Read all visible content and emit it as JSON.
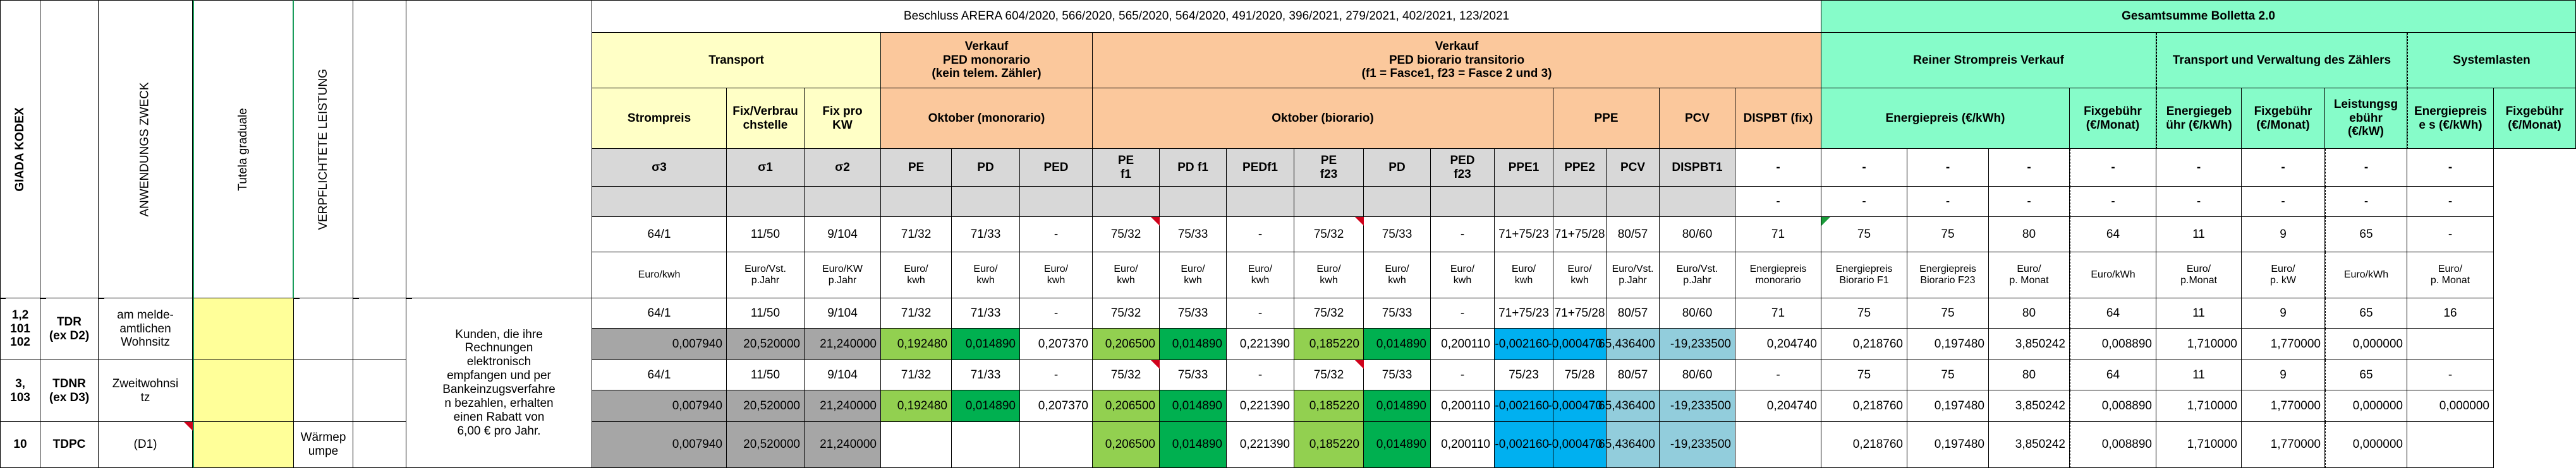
{
  "sheet": {
    "left_headers": {
      "giada_kodex": "GIADA KODEX",
      "anwendungs_zweck": "ANWENDUNGS\nZWECK",
      "tutela": "Tutela graduale",
      "verpflichtete": "VERPFLICHTETE LEISTUNG"
    },
    "group_titles": {
      "arera": "Beschluss ARERA 604/2020, 566/2020, 565/2020, 564/2020, 491/2020, 396/2021, 279/2021, 402/2021, 123/2021",
      "bolletta": "Gesamtsumme Bolletta 2.0",
      "transport": "Transport",
      "verkauf_mono": "Verkauf\nPED monorario\n(kein telem. Zähler)",
      "verkauf_bio": "Verkauf\nPED biorario transitorio\n(f1 = Fasce1, f23 = Fasce 2 und 3)",
      "reiner": "Reiner Strompreis Verkauf",
      "trans_verw": "Transport und Verwaltung des Zählers",
      "system": "Systemlasten"
    },
    "sub_headers": {
      "strompreis": "Strompreis",
      "fixverbrauch": "Fix/Verbrau\nchstelle",
      "fixkw": "Fix pro\nKW",
      "oktober_mono": "Oktober (monorario)",
      "oktober_bio": "Oktober (biorario)",
      "ppe": "PPE",
      "pcv": "PCV",
      "dispbt_fix": "DISPBT (fix)",
      "energiepreis_kwh": "Energiepreis (€/kWh)",
      "fixgebuehr_monat": "Fixgebühr\n(€/Monat)",
      "energiegebuehr_kwh": "Energiegeb\nühr (€/kWh)",
      "fixgebuehr_monat2": "Fixgebühr\n(€/Monat)",
      "leistungsgebuehr": "Leistungsg\nebühr\n(€/kW)",
      "energiepreis_s": "Energiepreis\ne s (€/kWh)",
      "fixgebuehr_monat3": "Fixgebühr\n(€/Monat)"
    },
    "codes": [
      "σ3",
      "σ1",
      "σ2",
      "PE",
      "PD",
      "PED",
      "PE\nf1",
      "PD f1",
      "PEDf1",
      "PE\nf23",
      "PD",
      "PED\nf23",
      "PPE1",
      "PPE2",
      "PCV",
      "DISPBT1",
      "-",
      "-",
      "-",
      "-",
      "-",
      "-",
      "-",
      "-",
      "-"
    ],
    "empty_row": [
      "-",
      "-",
      "-",
      "-",
      "-",
      "-",
      "-",
      "-",
      "-"
    ],
    "refs": [
      "64/1",
      "11/50",
      "9/104",
      "71/32",
      "71/33",
      "-",
      "75/32",
      "75/33",
      "-",
      "75/32",
      "75/33",
      "-",
      "71+75/23",
      "71+75/28",
      "80/57",
      "80/60",
      "71",
      "75",
      "75",
      "80",
      "64",
      "11",
      "9",
      "65",
      "-"
    ],
    "units": [
      "Euro/kwh",
      "Euro/Vst.\np.Jahr",
      "Euro/KW\np.Jahr",
      "Euro/\nkwh",
      "Euro/\nkwh",
      "Euro/\nkwh",
      "Euro/\nkwh",
      "Euro/\nkwh",
      "Euro/\nkwh",
      "Euro/\nkwh",
      "Euro/\nkwh",
      "Euro/\nkwh",
      "Euro/\nkwh",
      "Euro/\nkwh",
      "Euro/Vst.\np.Jahr",
      "Euro/Vst.\np.Jahr",
      "Energiepreis\nmonorario",
      "Energiepreis\nBiorario F1",
      "Energiepreis\nBiorario F23",
      "Euro/\np. Monat",
      "Euro/kWh",
      "Euro/\np.Monat",
      "Euro/\np. kW",
      "Euro/kWh",
      "Euro/\np. Monat"
    ],
    "description": "Kunden, die ihre\nRechnungen\nelektronisch\nempfangen und per\nBankeinzugsverfahre\nn bezahlen, erhalten\neinen Rabatt von\n6,00 € pro Jahr.",
    "tariffs": [
      {
        "code": "1,2\n101\n102",
        "name": "TDR\n(ex D2)",
        "zweck": "am melde-\namtlichen\nWohnsitz",
        "leistung": "",
        "refs": [
          "64/1",
          "11/50",
          "9/104",
          "71/32",
          "71/33",
          "-",
          "75/32",
          "75/33",
          "-",
          "75/32",
          "75/33",
          "-",
          "71+75/23",
          "71+75/28",
          "80/57",
          "80/60",
          "71",
          "75",
          "75",
          "80",
          "64",
          "11",
          "9",
          "65",
          "16"
        ],
        "values": [
          "0,007940",
          "20,520000",
          "21,240000",
          "0,192480",
          "0,014890",
          "0,207370",
          "0,206500",
          "0,014890",
          "0,221390",
          "0,185220",
          "0,014890",
          "0,200110",
          "-0,002160",
          "-0,000470",
          "65,436400",
          "-19,233500",
          "0,204740",
          "0,218760",
          "0,197480",
          "3,850242",
          "0,008890",
          "1,710000",
          "1,770000",
          "0,000000",
          ""
        ]
      },
      {
        "code": "3,\n103",
        "name": "TDNR\n(ex D3)",
        "zweck": "Zweitwohnsi\ntz",
        "leistung": "",
        "refs": [
          "64/1",
          "11/50",
          "9/104",
          "71/32",
          "71/33",
          "-",
          "75/32",
          "75/33",
          "-",
          "75/32",
          "75/33",
          "-",
          "75/23",
          "75/28",
          "80/57",
          "80/60",
          "-",
          "75",
          "75",
          "80",
          "64",
          "11",
          "9",
          "65",
          "-"
        ],
        "values": [
          "0,007940",
          "20,520000",
          "21,240000",
          "0,192480",
          "0,014890",
          "0,207370",
          "0,206500",
          "0,014890",
          "0,221390",
          "0,185220",
          "0,014890",
          "0,200110",
          "-0,002160",
          "-0,000470",
          "65,436400",
          "-19,233500",
          "0,204740",
          "0,218760",
          "0,197480",
          "3,850242",
          "0,008890",
          "1,710000",
          "1,770000",
          "0,000000",
          "0,000000"
        ]
      },
      {
        "code": "10",
        "name": "TDPC",
        "zweck": "(D1)",
        "leistung": "Wärmep\numpe",
        "values": [
          "0,007940",
          "20,520000",
          "21,240000",
          "",
          "",
          "",
          "0,206500",
          "0,014890",
          "0,221390",
          "0,185220",
          "0,014890",
          "0,200110",
          "-0,002160",
          "-0,000470",
          "65,436400",
          "-19,233500",
          "",
          "0,218760",
          "0,197480",
          "3,850242",
          "0,008890",
          "1,710000",
          "1,770000",
          "0,000000",
          ""
        ]
      }
    ],
    "colors": {
      "transport_bg": "#ffffc6",
      "verkauf_bg": "#fbc89c",
      "bolletta_bg": "#86fcc9",
      "gray_row": "#d8d8d8",
      "dark_gray": "#a6a6a6",
      "light_green": "#92d050",
      "green": "#00b050",
      "blue": "#00b0f0",
      "teal": "#92cddc",
      "yellow": "#ffff99"
    }
  }
}
